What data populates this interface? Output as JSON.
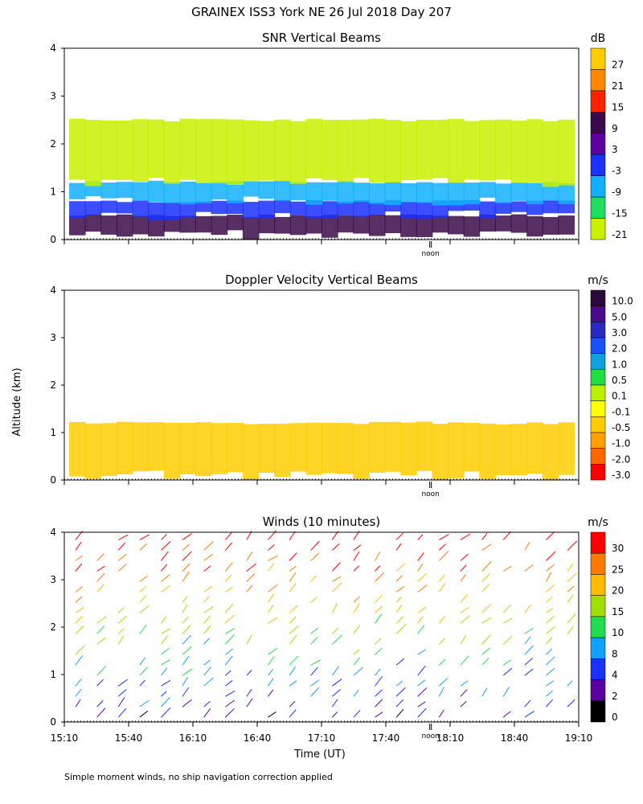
{
  "title": "GRAINEX ISS3 York NE  26 Jul 2018 Day 207",
  "ylabel": "Altitude (km)",
  "xlabel": "Time (UT)",
  "footnote": "Simple moment winds, no ship navigation correction applied",
  "noon_label": "noon",
  "chart_data": [
    {
      "type": "heatmap",
      "title": "SNR Vertical Beams",
      "ylabel": "Altitude (km)",
      "y_ticks": [
        "0",
        "1",
        "2",
        "3",
        "4"
      ],
      "ylim": [
        0,
        4
      ],
      "colorbar": {
        "unit": "dB",
        "levels": [
          "27",
          "21",
          "15",
          "9",
          "3",
          "-3",
          "-9",
          "-15",
          "-21"
        ],
        "colors": [
          "#ffcc00",
          "#ff8800",
          "#ff2200",
          "#3a0a4a",
          "#5a00a0",
          "#1a30ff",
          "#10b0ff",
          "#20dd60",
          "#c8f000"
        ]
      },
      "layers": [
        {
          "y_range": [
            0.1,
            0.5
          ],
          "level": "9"
        },
        {
          "y_range": [
            0.5,
            0.8
          ],
          "level": "-3"
        },
        {
          "y_range": [
            0.8,
            1.2
          ],
          "level": "-9"
        },
        {
          "y_range": [
            1.2,
            2.5
          ],
          "level": "-21"
        }
      ]
    },
    {
      "type": "heatmap",
      "title": "Doppler Velocity Vertical Beams",
      "ylabel": "Altitude (km)",
      "y_ticks": [
        "0",
        "1",
        "2",
        "3",
        "4"
      ],
      "ylim": [
        0,
        4
      ],
      "colorbar": {
        "unit": "m/s",
        "levels": [
          "10.0",
          "5.0",
          "3.0",
          "2.0",
          "1.0",
          "0.5",
          "0.1",
          "-0.1",
          "-0.5",
          "-1.0",
          "-2.0",
          "-3.0"
        ],
        "colors": [
          "#2a0a3a",
          "#4a0a8a",
          "#2a2ac0",
          "#1a50ff",
          "#10a0e0",
          "#20dd40",
          "#b8f000",
          "#ffff00",
          "#ffcc00",
          "#ffa000",
          "#ff6600",
          "#ff0000"
        ]
      },
      "layers": [
        {
          "y_range": [
            0.1,
            1.2
          ],
          "level": "-0.5"
        }
      ]
    },
    {
      "type": "scatter",
      "title": "Winds (10 minutes)",
      "ylabel": "Altitude (km)",
      "xlabel": "Time (UT)",
      "x_ticks": [
        "15:10",
        "15:40",
        "16:10",
        "16:40",
        "17:10",
        "17:40",
        "18:10",
        "18:40",
        "19:10"
      ],
      "y_ticks": [
        "0",
        "1",
        "2",
        "3",
        "4"
      ],
      "ylim": [
        0,
        4
      ],
      "colorbar": {
        "unit": "m/s",
        "levels": [
          "30",
          "25",
          "20",
          "15",
          "10",
          "8",
          "4",
          "2",
          "0"
        ],
        "colors": [
          "#ff0000",
          "#ff7a00",
          "#ffbb00",
          "#a0e000",
          "#20dd50",
          "#10a0ff",
          "#1a30ff",
          "#5a00a0",
          "#000000"
        ]
      },
      "barb_columns": 24
    }
  ]
}
